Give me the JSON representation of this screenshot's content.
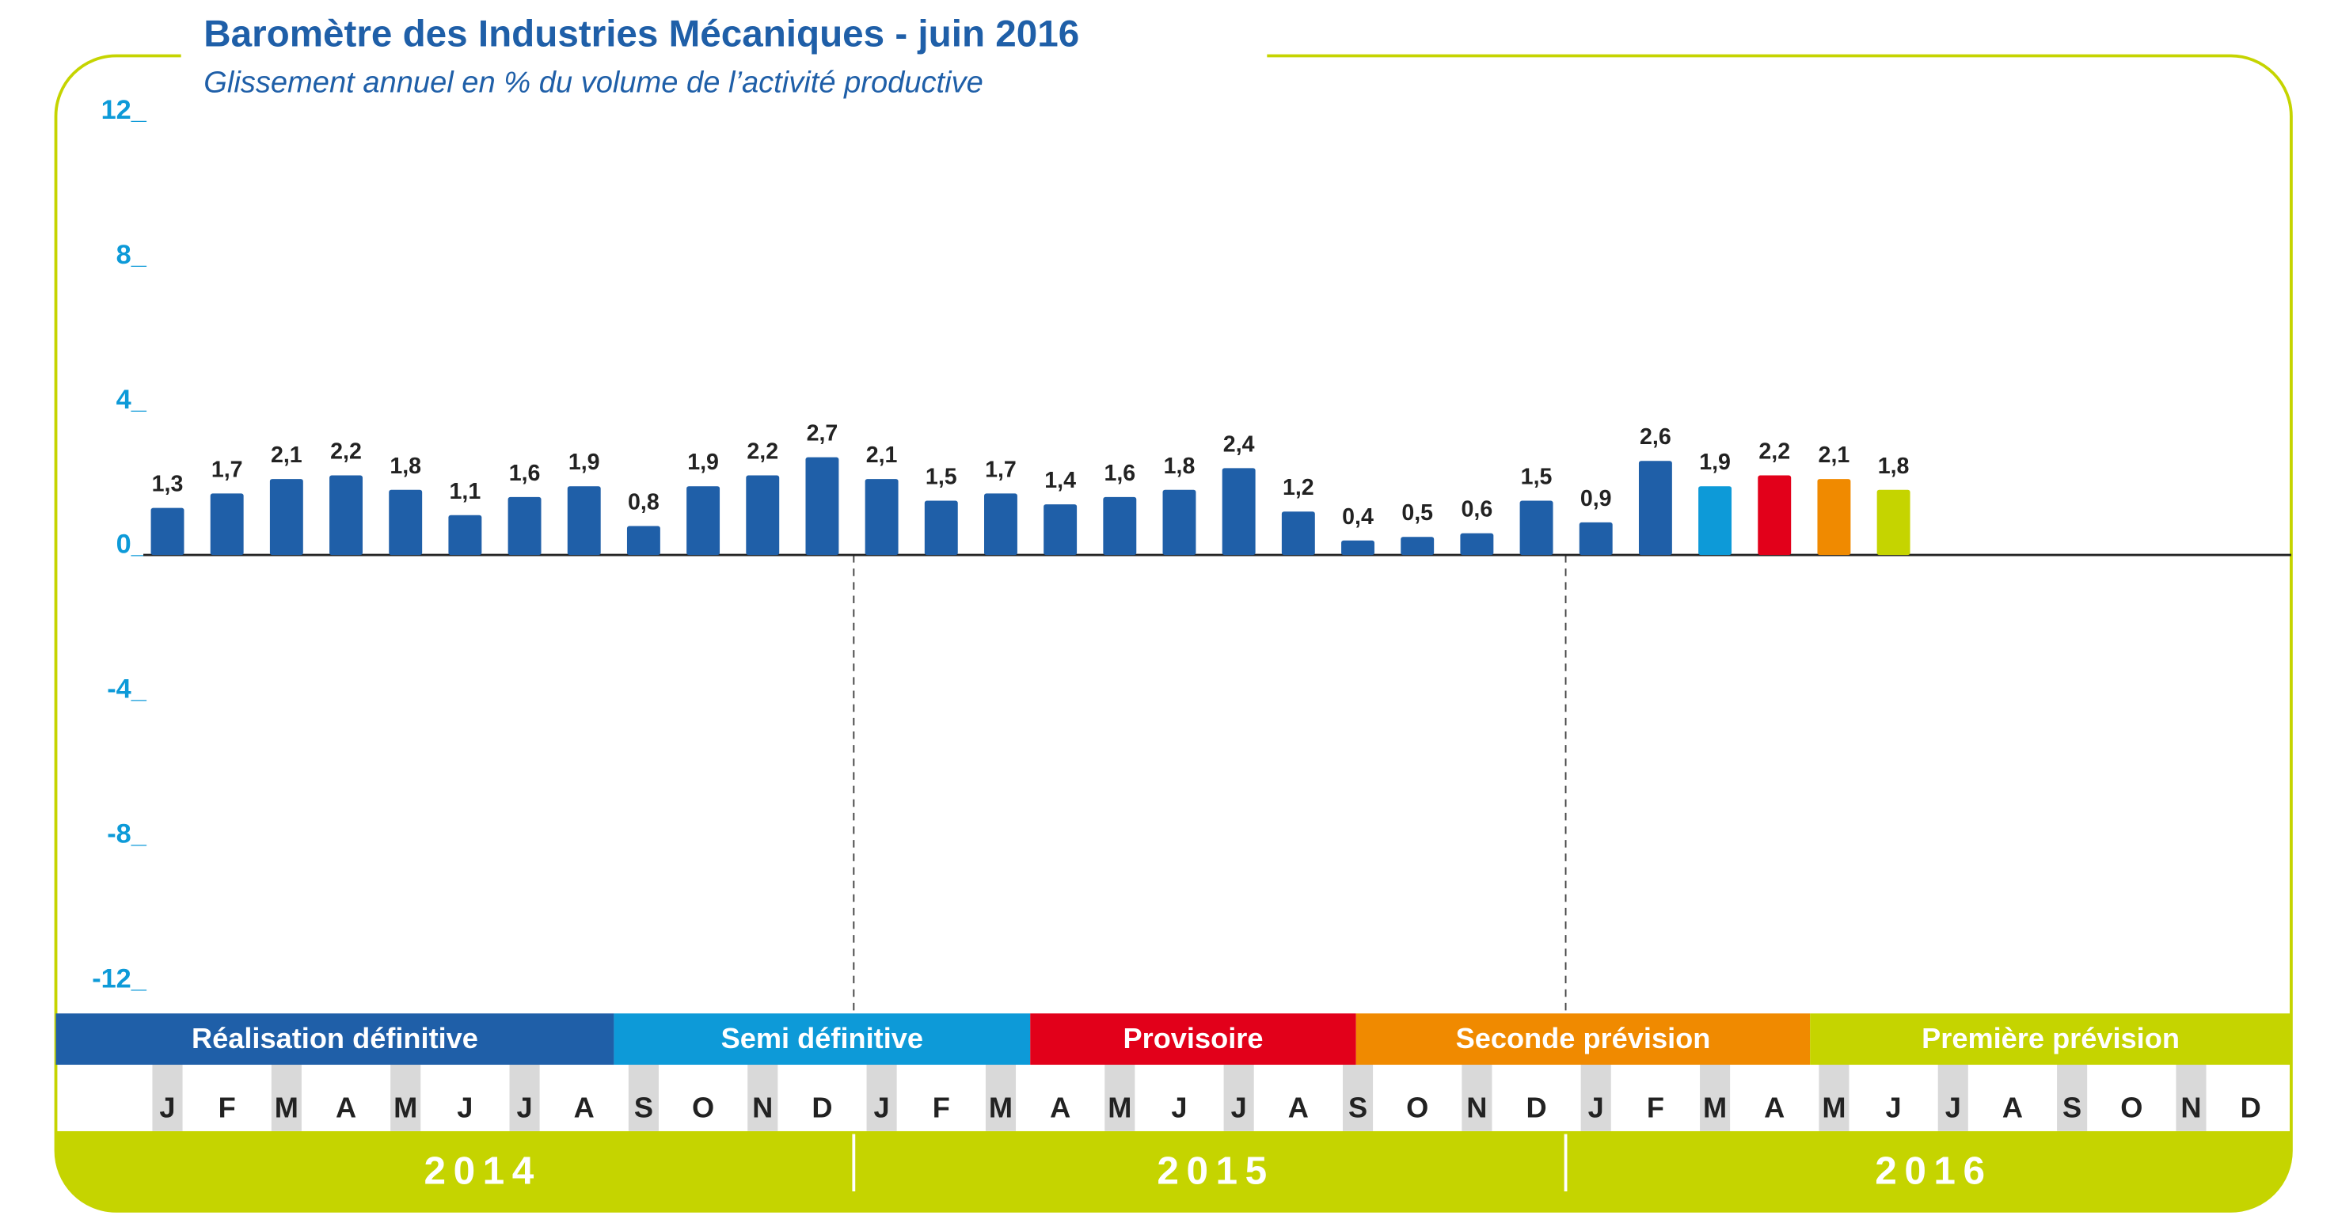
{
  "chart_data": {
    "type": "bar",
    "title": "Baromètre des Industries Mécaniques - juin 2016",
    "subtitle": "Glissement annuel en % du volume de l’activité productive",
    "categories": [
      "J",
      "F",
      "M",
      "A",
      "M",
      "J",
      "J",
      "A",
      "S",
      "O",
      "N",
      "D",
      "J",
      "F",
      "M",
      "A",
      "M",
      "J",
      "J",
      "A",
      "S",
      "O",
      "N",
      "D",
      "J",
      "F",
      "M",
      "A",
      "M",
      "J",
      "J",
      "A",
      "S",
      "O",
      "N",
      "D"
    ],
    "values": [
      1.3,
      1.7,
      2.1,
      2.2,
      1.8,
      1.1,
      1.6,
      1.9,
      0.8,
      1.9,
      2.2,
      2.7,
      2.1,
      1.5,
      1.7,
      1.4,
      1.6,
      1.8,
      2.4,
      1.2,
      0.4,
      0.5,
      0.6,
      1.5,
      0.9,
      2.6,
      1.9,
      2.2,
      2.1,
      1.8,
      null,
      null,
      null,
      null,
      null,
      null
    ],
    "value_labels": [
      "1,3",
      "1,7",
      "2,1",
      "2,2",
      "1,8",
      "1,1",
      "1,6",
      "1,9",
      "0,8",
      "1,9",
      "2,2",
      "2,7",
      "2,1",
      "1,5",
      "1,7",
      "1,4",
      "1,6",
      "1,8",
      "2,4",
      "1,2",
      "0,4",
      "0,5",
      "0,6",
      "1,5",
      "0,9",
      "2,6",
      "1,9",
      "2,2",
      "2,1",
      "1,8",
      null,
      null,
      null,
      null,
      null,
      null
    ],
    "colors": [
      "#1f5fa8",
      "#1f5fa8",
      "#1f5fa8",
      "#1f5fa8",
      "#1f5fa8",
      "#1f5fa8",
      "#1f5fa8",
      "#1f5fa8",
      "#1f5fa8",
      "#1f5fa8",
      "#1f5fa8",
      "#1f5fa8",
      "#1f5fa8",
      "#1f5fa8",
      "#1f5fa8",
      "#1f5fa8",
      "#1f5fa8",
      "#1f5fa8",
      "#1f5fa8",
      "#1f5fa8",
      "#1f5fa8",
      "#1f5fa8",
      "#1f5fa8",
      "#1f5fa8",
      "#1f5fa8",
      "#1f5fa8",
      "#0d9ad8",
      "#e2001a",
      "#f08a00",
      "#c5d400",
      null,
      null,
      null,
      null,
      null,
      null
    ],
    "ylim": [
      -12,
      12
    ],
    "yticks": [
      {
        "value": 12,
        "label": "12_"
      },
      {
        "value": 8,
        "label": "8_"
      },
      {
        "value": 4,
        "label": "4_"
      },
      {
        "value": 0,
        "label": "0_"
      },
      {
        "value": -4,
        "label": "-4_"
      },
      {
        "value": -8,
        "label": "-8_"
      },
      {
        "value": -12,
        "label": "-12_"
      }
    ],
    "phases": [
      {
        "label": "Réalisation définitive",
        "color": "#1f5fa8"
      },
      {
        "label": "Semi définitive",
        "color": "#0d9ad8"
      },
      {
        "label": "Provisoire",
        "color": "#e2001a"
      },
      {
        "label": "Seconde prévision",
        "color": "#f08a00"
      },
      {
        "label": "Première prévision",
        "color": "#c5d400"
      }
    ],
    "years": [
      "2014",
      "2015",
      "2016"
    ]
  }
}
